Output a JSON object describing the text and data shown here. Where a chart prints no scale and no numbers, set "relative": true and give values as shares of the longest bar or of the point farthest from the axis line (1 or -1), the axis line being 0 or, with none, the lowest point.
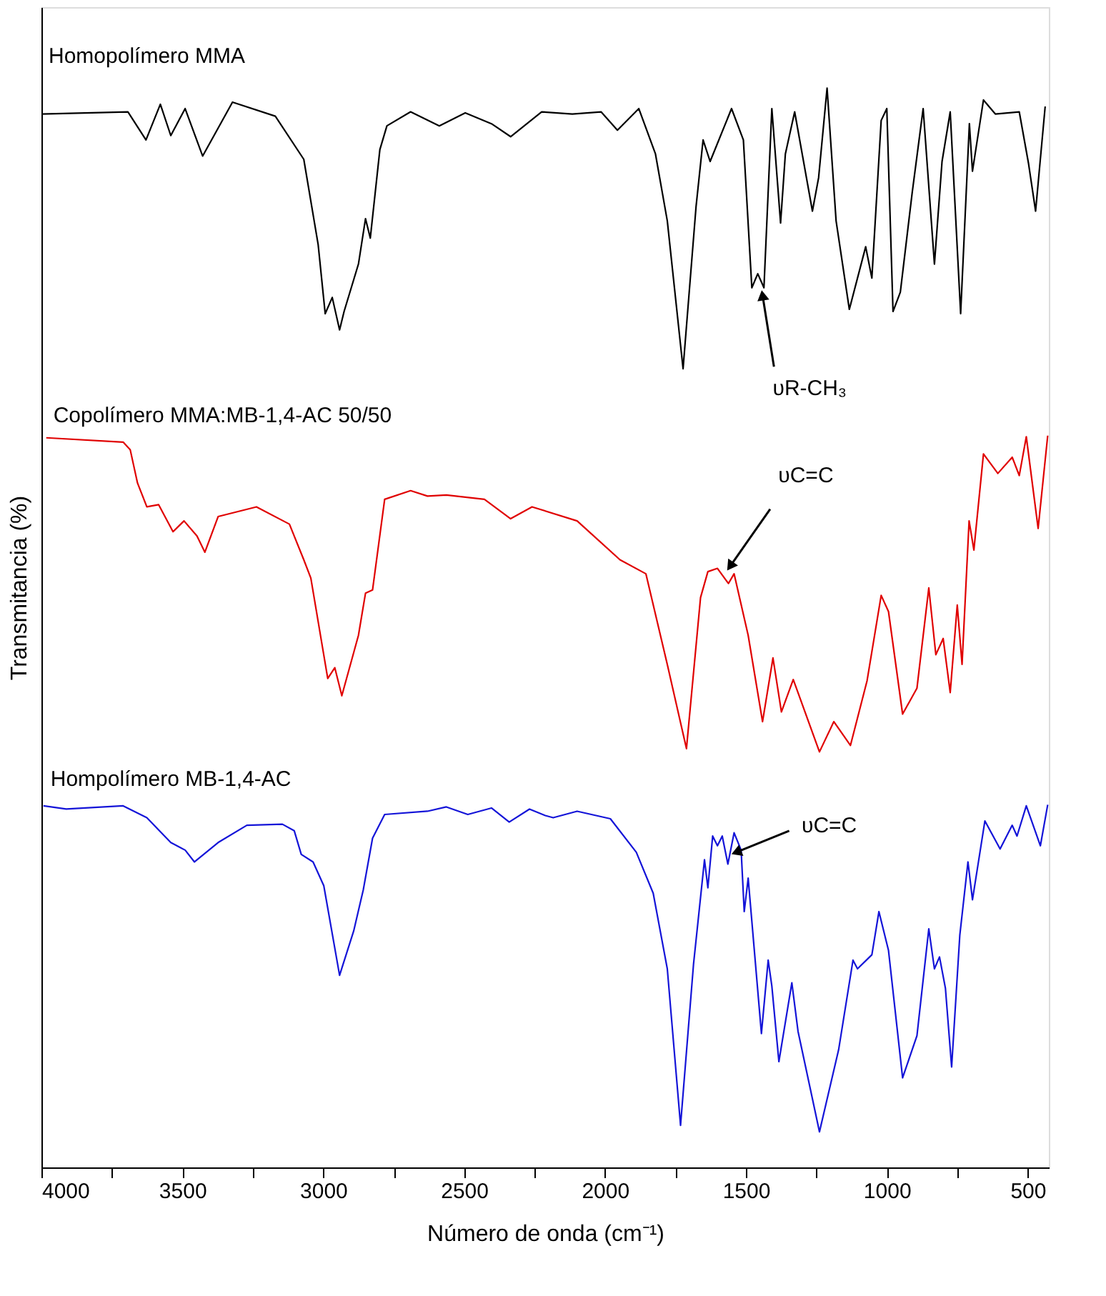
{
  "chart_data": {
    "type": "line",
    "relative": true,
    "xlabel": "Número de onda (cm⁻¹)",
    "ylabel": "Transmitancia (%)",
    "xlim": [
      4000,
      425
    ],
    "xticks": [
      4000,
      {
        "value": 3750,
        "label": null
      },
      3500,
      {
        "value": 3250,
        "label": null
      },
      3000,
      {
        "value": 2750,
        "label": null
      },
      2500,
      {
        "value": 2250,
        "label": null
      },
      2000,
      {
        "value": 1750,
        "label": null
      },
      1500,
      {
        "value": 1250,
        "label": null
      },
      1000,
      {
        "value": 750,
        "label": null
      },
      500
    ],
    "tick_labels": "x",
    "grid": false,
    "legend": false,
    "line_style": "solid",
    "marker": "none",
    "annotations": [
      {
        "text": "υR-CH₃",
        "x": 1441,
        "y": 0.808
      },
      {
        "text": "υC=C",
        "x": 1556,
        "y": 0.557
      },
      {
        "text": "υC=C",
        "x": 1534,
        "y": 0.292
      }
    ],
    "series": [
      {
        "name": "Homopolímero MMA",
        "color": "#000000",
        "x": [
          4000,
          3693,
          3629,
          3578,
          3541,
          3490,
          3428,
          3322,
          3170,
          3069,
          3018,
          2993,
          2968,
          2942,
          2926,
          2875,
          2850,
          2833,
          2799,
          2774,
          2690,
          2588,
          2496,
          2403,
          2335,
          2225,
          2116,
          2014,
          1956,
          1880,
          1821,
          1779,
          1723,
          1677,
          1652,
          1627,
          1551,
          1509,
          1479,
          1458,
          1436,
          1408,
          1377,
          1360,
          1327,
          1264,
          1242,
          1212,
          1180,
          1133,
          1075,
          1053,
          1020,
          1000,
          978,
          952,
          910,
          871,
          831,
          804,
          775,
          738,
          707,
          696,
          657,
          615,
          530,
          497,
          472,
          438
        ],
        "values": [
          0.976,
          0.978,
          0.952,
          0.985,
          0.956,
          0.981,
          0.937,
          0.987,
          0.974,
          0.934,
          0.855,
          0.791,
          0.806,
          0.776,
          0.793,
          0.837,
          0.879,
          0.861,
          0.943,
          0.965,
          0.978,
          0.965,
          0.977,
          0.967,
          0.955,
          0.978,
          0.976,
          0.978,
          0.961,
          0.981,
          0.939,
          0.877,
          0.74,
          0.89,
          0.952,
          0.932,
          0.981,
          0.952,
          0.815,
          0.828,
          0.815,
          0.981,
          0.875,
          0.939,
          0.978,
          0.886,
          0.917,
          1.0,
          0.877,
          0.795,
          0.853,
          0.824,
          0.97,
          0.981,
          0.793,
          0.811,
          0.903,
          0.981,
          0.837,
          0.932,
          0.978,
          0.791,
          0.967,
          0.923,
          0.989,
          0.976,
          0.978,
          0.93,
          0.886,
          0.983
        ]
      },
      {
        "name": "Copolímero MMA:MB-1,4-AC 50/50",
        "color": "#e00000",
        "x": [
          3983,
          3710,
          3685,
          3659,
          3626,
          3584,
          3533,
          3494,
          3448,
          3420,
          3373,
          3237,
          3120,
          3069,
          3044,
          2984,
          2959,
          2934,
          2875,
          2850,
          2825,
          2782,
          2690,
          2630,
          2563,
          2428,
          2335,
          2259,
          2099,
          1947,
          1855,
          1779,
          1711,
          1661,
          1635,
          1601,
          1562,
          1542,
          1492,
          1441,
          1404,
          1374,
          1332,
          1239,
          1188,
          1129,
          1070,
          1020,
          994,
          944,
          893,
          851,
          826,
          800,
          775,
          750,
          733,
          708,
          691,
          657,
          606,
          555,
          530,
          505,
          463,
          429
        ],
        "values": [
          0.676,
          0.672,
          0.665,
          0.634,
          0.612,
          0.614,
          0.589,
          0.599,
          0.585,
          0.57,
          0.603,
          0.612,
          0.596,
          0.563,
          0.546,
          0.453,
          0.463,
          0.437,
          0.493,
          0.532,
          0.535,
          0.619,
          0.627,
          0.622,
          0.623,
          0.619,
          0.601,
          0.612,
          0.599,
          0.563,
          0.55,
          0.466,
          0.388,
          0.528,
          0.552,
          0.555,
          0.541,
          0.55,
          0.493,
          0.413,
          0.472,
          0.422,
          0.452,
          0.385,
          0.413,
          0.391,
          0.451,
          0.53,
          0.515,
          0.42,
          0.444,
          0.537,
          0.475,
          0.49,
          0.44,
          0.521,
          0.466,
          0.599,
          0.572,
          0.661,
          0.643,
          0.658,
          0.641,
          0.677,
          0.592,
          0.678
        ]
      },
      {
        "name": "Hompolímero MB-1,4-AC",
        "color": "#1414d8",
        "x": [
          3993,
          3912,
          3710,
          3626,
          3541,
          3490,
          3457,
          3373,
          3271,
          3145,
          3103,
          3078,
          3036,
          2998,
          2942,
          2892,
          2858,
          2825,
          2782,
          2630,
          2563,
          2487,
          2403,
          2340,
          2268,
          2212,
          2184,
          2099,
          1981,
          1889,
          1829,
          1779,
          1732,
          1686,
          1647,
          1635,
          1618,
          1601,
          1584,
          1564,
          1542,
          1517,
          1506,
          1492,
          1445,
          1421,
          1408,
          1383,
          1337,
          1315,
          1239,
          1171,
          1120,
          1104,
          1053,
          1028,
          994,
          944,
          893,
          851,
          831,
          813,
          792,
          770,
          741,
          712,
          696,
          652,
          598,
          555,
          538,
          505,
          455,
          429
        ],
        "values": [
          0.335,
          0.332,
          0.335,
          0.324,
          0.301,
          0.294,
          0.283,
          0.301,
          0.317,
          0.318,
          0.312,
          0.29,
          0.283,
          0.261,
          0.178,
          0.219,
          0.257,
          0.305,
          0.327,
          0.33,
          0.334,
          0.327,
          0.333,
          0.32,
          0.332,
          0.326,
          0.324,
          0.33,
          0.323,
          0.292,
          0.254,
          0.184,
          0.039,
          0.188,
          0.285,
          0.259,
          0.307,
          0.298,
          0.307,
          0.281,
          0.31,
          0.294,
          0.237,
          0.268,
          0.124,
          0.192,
          0.168,
          0.098,
          0.171,
          0.126,
          0.033,
          0.109,
          0.192,
          0.184,
          0.197,
          0.237,
          0.201,
          0.083,
          0.122,
          0.221,
          0.184,
          0.195,
          0.166,
          0.093,
          0.215,
          0.283,
          0.248,
          0.321,
          0.295,
          0.317,
          0.307,
          0.335,
          0.298,
          0.336
        ]
      }
    ]
  }
}
